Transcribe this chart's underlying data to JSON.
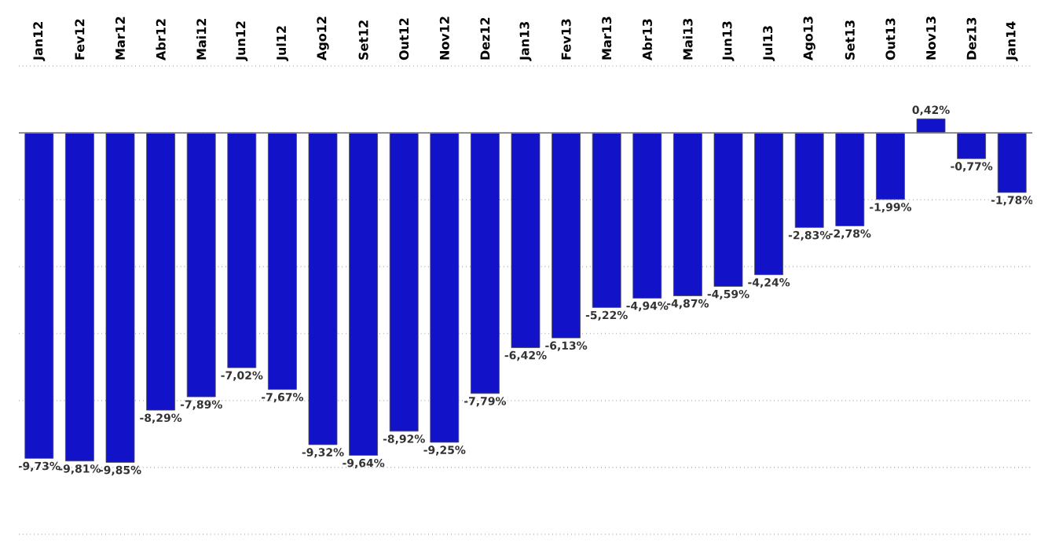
{
  "chart_data": {
    "type": "bar",
    "categories": [
      "Jan12",
      "Fev12",
      "Mar12",
      "Abr12",
      "Mai12",
      "Jun12",
      "Jul12",
      "Ago12",
      "Set12",
      "Out12",
      "Nov12",
      "Dez12",
      "Jan13",
      "Fev13",
      "Mar13",
      "Abr13",
      "Mai13",
      "Jun13",
      "Jul13",
      "Ago13",
      "Set13",
      "Out13",
      "Nov13",
      "Dez13",
      "Jan14"
    ],
    "values": [
      -9.73,
      -9.81,
      -9.85,
      -8.29,
      -7.89,
      -7.02,
      -7.67,
      -9.32,
      -9.64,
      -8.92,
      -9.25,
      -7.79,
      -6.42,
      -6.13,
      -5.22,
      -4.94,
      -4.87,
      -4.59,
      -4.24,
      -2.83,
      -2.78,
      -1.99,
      0.42,
      -0.77,
      -1.78
    ],
    "value_labels": [
      "-9,73%",
      "-9,81%",
      "-9,85%",
      "-8,29%",
      "-7,89%",
      "-7,02%",
      "-7,67%",
      "-9,32%",
      "-9,64%",
      "-8,92%",
      "-9,25%",
      "-7,79%",
      "-6,42%",
      "-6,13%",
      "-5,22%",
      "-4,94%",
      "-4,87%",
      "-4,59%",
      "-4,24%",
      "-2,83%",
      "-2,78%",
      "-1,99%",
      "0,42%",
      "-0,77%",
      "-1,78%"
    ],
    "color": "#1212c8",
    "ylim": [
      -12,
      2
    ],
    "yticks": [
      {
        "value": 2,
        "label": null
      },
      {
        "value": 0,
        "label": null
      },
      {
        "value": -2,
        "label": null
      },
      {
        "value": -4,
        "label": null
      },
      {
        "value": -6,
        "label": null
      },
      {
        "value": -8,
        "label": null
      },
      {
        "value": -10,
        "label": null
      },
      {
        "value": -12,
        "label": null
      }
    ],
    "grid": "y",
    "tick_labels": "x"
  }
}
